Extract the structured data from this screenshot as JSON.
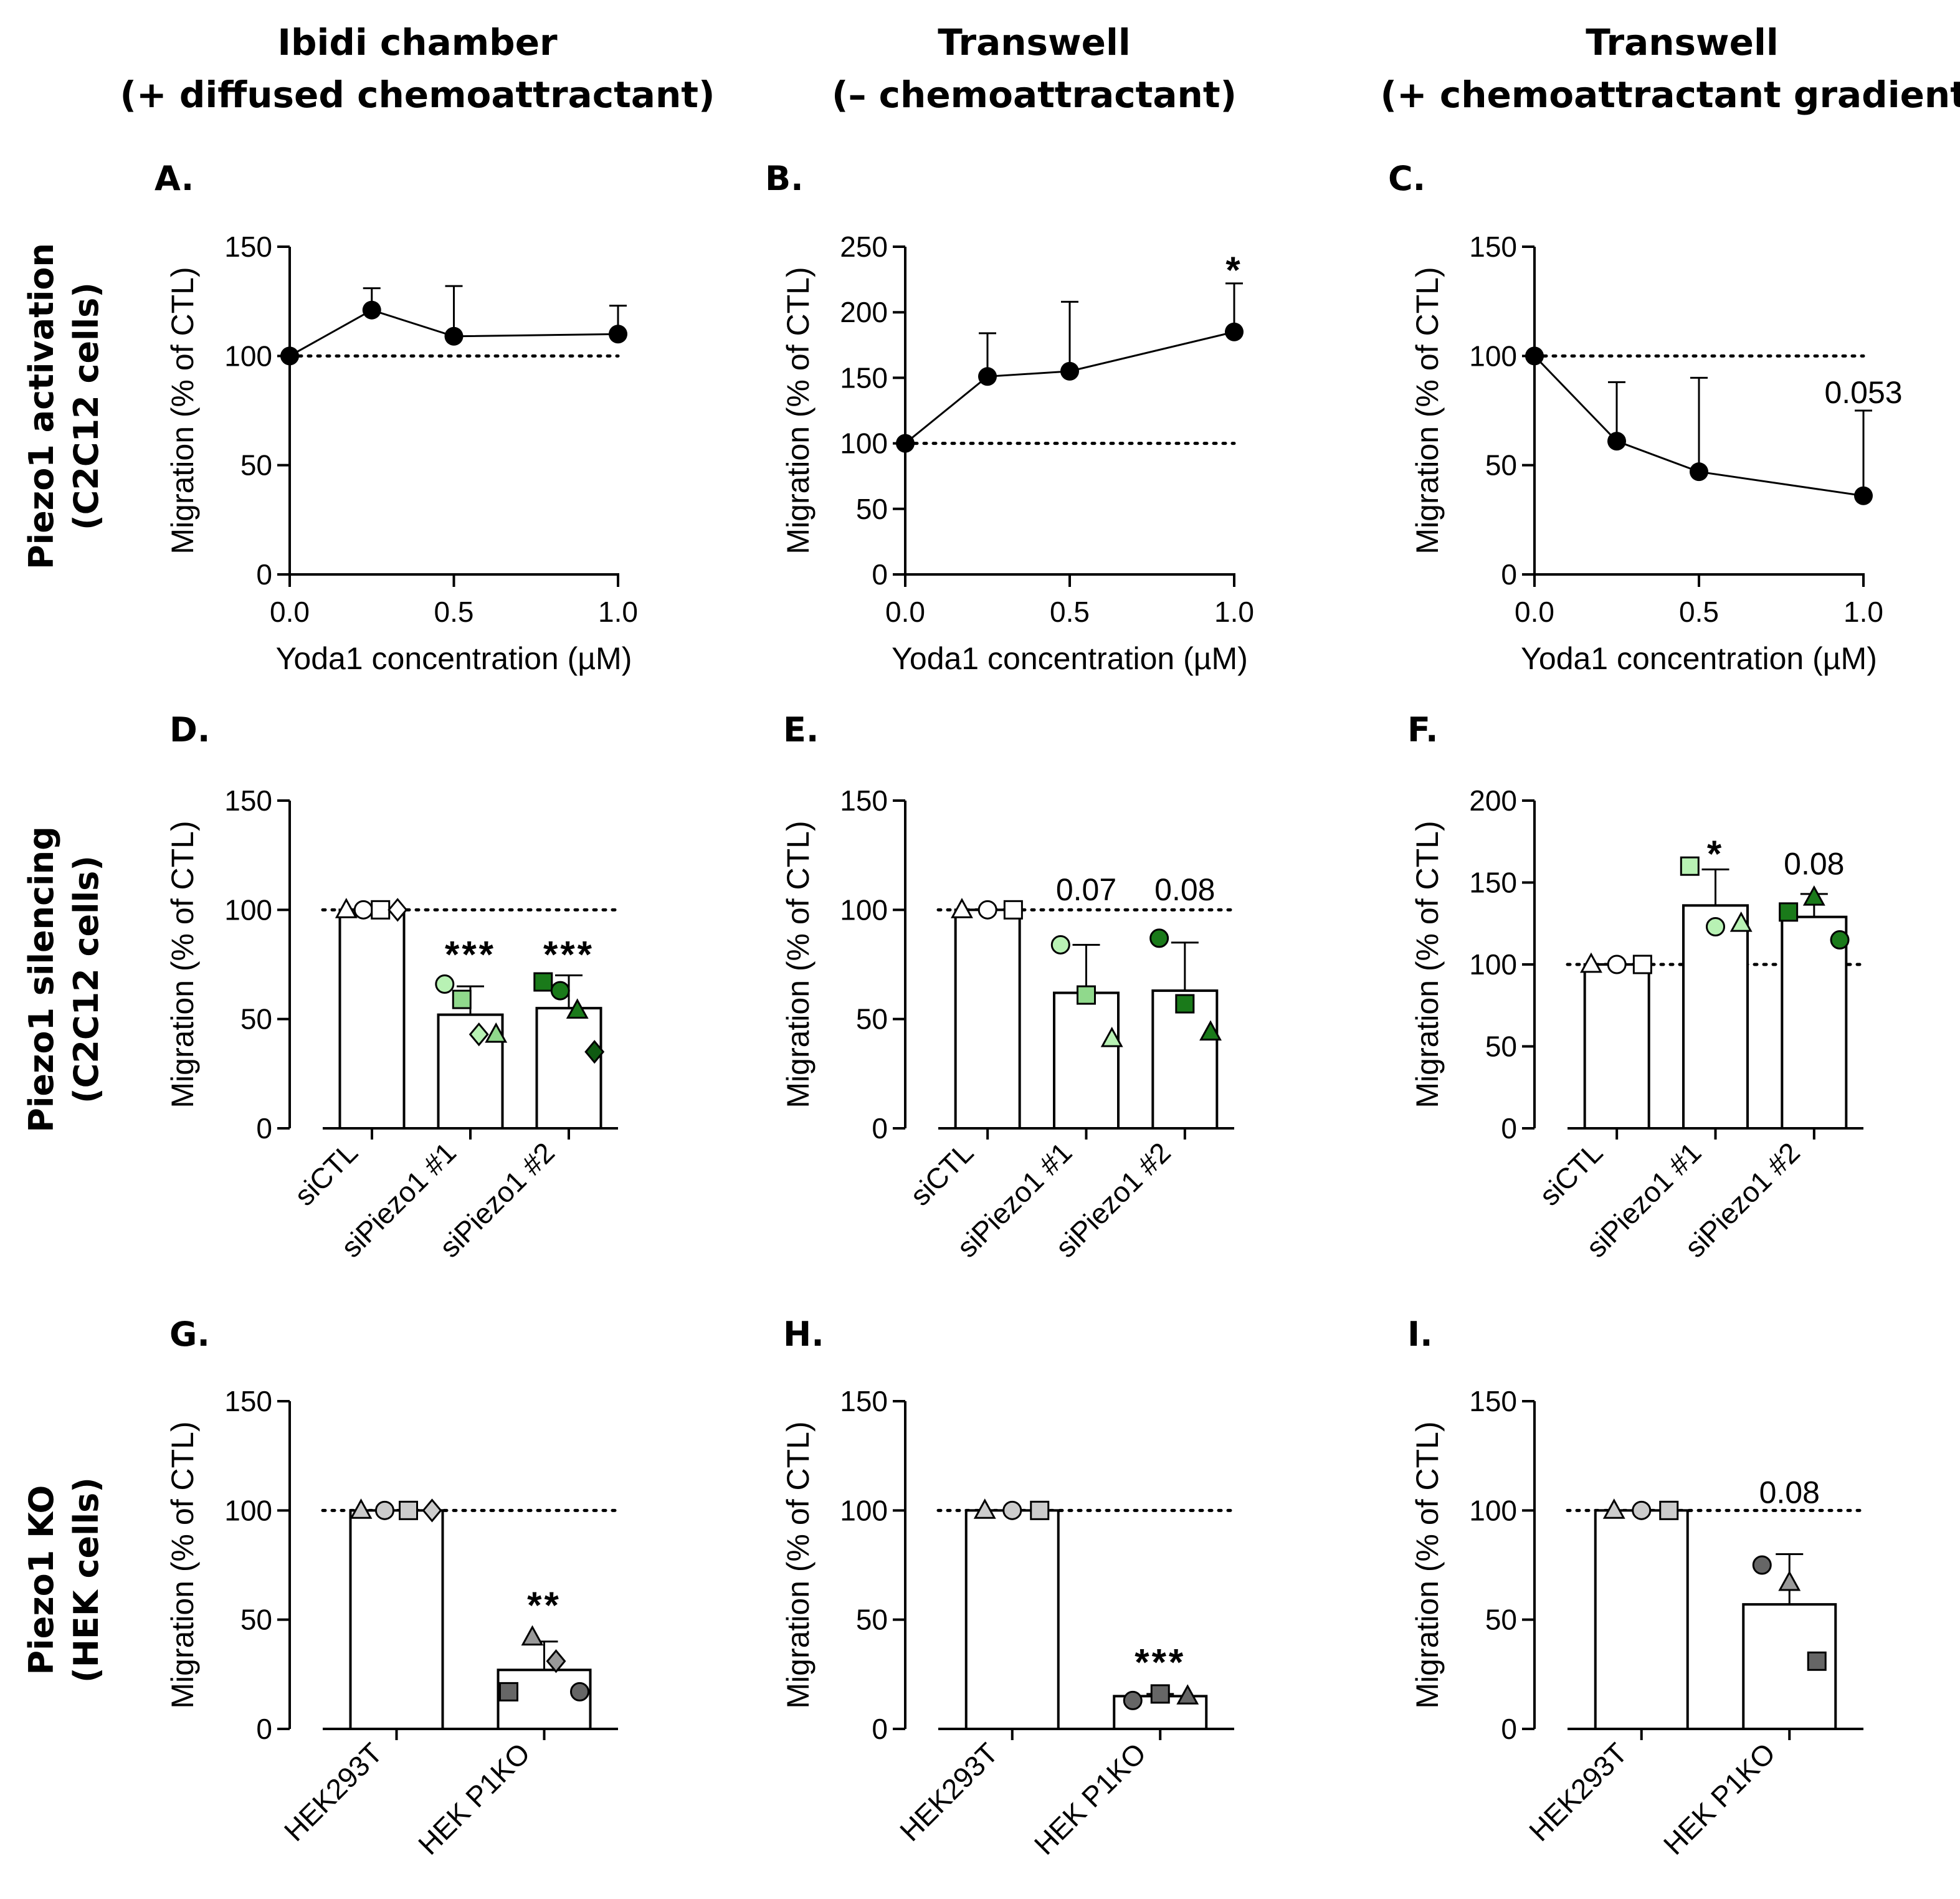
{
  "column_titles": [
    {
      "line1": "Ibidi chamber",
      "line2": "(+ diffused chemoattractant)"
    },
    {
      "line1": "Transwell",
      "line2": "(– chemoattractant)"
    },
    {
      "line1": "Transwell",
      "line2": "(+ chemoattractant gradient)"
    }
  ],
  "row_labels": [
    {
      "line1": "Piezo1 activation",
      "line2": "(C2C12  cells)"
    },
    {
      "line1": "Piezo1 silencing",
      "line2": "(C2C12 cells)"
    },
    {
      "line1": "Piezo1 KO",
      "line2": "(HEK cells)"
    }
  ],
  "colors": {
    "axis": "#000000",
    "c1_light": "#b8f2b4",
    "c2_light": "#90d98c",
    "c3_dark": "#1a7a1a",
    "c4_darker": "#0f5a12",
    "grey_light": "#cccccc",
    "grey_mid": "#999999",
    "grey_dark": "#666666"
  },
  "chart_data": [
    {
      "id": "A",
      "label": "A.",
      "type": "line",
      "xlabel": "Yoda1 concentration (µM)",
      "ylabel": "Migration (% of CTL)",
      "xlim": [
        0,
        1
      ],
      "ylim": [
        0,
        150
      ],
      "xticks": [
        0,
        0.5,
        1
      ],
      "xtick_labels": [
        "0.0",
        "0.5",
        "1.0"
      ],
      "yticks": [
        0,
        50,
        100,
        150
      ],
      "ytick_labels": [
        "0",
        "50",
        "100",
        "150"
      ],
      "reference_line": 100,
      "x": [
        0,
        0.25,
        0.5,
        1.0
      ],
      "y": [
        100,
        121,
        109,
        110
      ],
      "error": [
        0,
        10,
        23,
        13
      ],
      "annotations": []
    },
    {
      "id": "B",
      "label": "B.",
      "type": "line",
      "xlabel": "Yoda1 concentration (µM)",
      "ylabel": "Migration (% of CTL)",
      "xlim": [
        0,
        1
      ],
      "ylim": [
        0,
        250
      ],
      "xticks": [
        0,
        0.5,
        1
      ],
      "xtick_labels": [
        "0.0",
        "0.5",
        "1.0"
      ],
      "yticks": [
        0,
        50,
        100,
        150,
        200,
        250
      ],
      "ytick_labels": [
        "0",
        "50",
        "100",
        "150",
        "200",
        "250"
      ],
      "reference_line": 100,
      "x": [
        0,
        0.25,
        0.5,
        1.0
      ],
      "y": [
        100,
        151,
        155,
        185
      ],
      "error": [
        0,
        33,
        53,
        37
      ],
      "annotations": [
        {
          "text": "*",
          "x": 1.0,
          "y": 233,
          "style": "star"
        }
      ]
    },
    {
      "id": "C",
      "label": "C.",
      "type": "line",
      "xlabel": "Yoda1 concentration (µM)",
      "ylabel": "Migration (% of CTL)",
      "xlim": [
        0,
        1
      ],
      "ylim": [
        0,
        150
      ],
      "xticks": [
        0,
        0.5,
        1
      ],
      "xtick_labels": [
        "0.0",
        "0.5",
        "1.0"
      ],
      "yticks": [
        0,
        50,
        100,
        150
      ],
      "ytick_labels": [
        "0",
        "50",
        "100",
        "150"
      ],
      "reference_line": 100,
      "x": [
        0,
        0.25,
        0.5,
        1.0
      ],
      "y": [
        100,
        61,
        47,
        36
      ],
      "error": [
        0,
        27,
        43,
        39
      ],
      "annotations": [
        {
          "text": "0.053",
          "x": 1.0,
          "y": 83,
          "style": "num"
        }
      ]
    },
    {
      "id": "D",
      "label": "D.",
      "type": "bar",
      "ylabel": "Migration (% of CTL)",
      "categories": [
        "siCTL",
        "siPiezo1 #1",
        "siPiezo1 #2"
      ],
      "ylim": [
        0,
        150
      ],
      "yticks": [
        0,
        50,
        100,
        150
      ],
      "ytick_labels": [
        "0",
        "50",
        "100",
        "150"
      ],
      "reference_line": 100,
      "values": [
        100,
        52,
        55
      ],
      "error": [
        0,
        13,
        15
      ],
      "points": [
        [
          {
            "y": 100,
            "shape": "triangle",
            "color": "#ffffff"
          },
          {
            "y": 100,
            "shape": "circle",
            "color": "#ffffff"
          },
          {
            "y": 100,
            "shape": "square",
            "color": "#ffffff"
          },
          {
            "y": 100,
            "shape": "diamond",
            "color": "#ffffff"
          }
        ],
        [
          {
            "y": 66,
            "shape": "circle",
            "color": "#b8f2b4"
          },
          {
            "y": 59,
            "shape": "square",
            "color": "#90d98c"
          },
          {
            "y": 43,
            "shape": "diamond",
            "color": "#b8f2b4"
          },
          {
            "y": 43,
            "shape": "triangle",
            "color": "#90d98c"
          }
        ],
        [
          {
            "y": 67,
            "shape": "square",
            "color": "#1a7a1a"
          },
          {
            "y": 63,
            "shape": "circle",
            "color": "#1a7a1a"
          },
          {
            "y": 54,
            "shape": "triangle",
            "color": "#1a7a1a"
          },
          {
            "y": 35,
            "shape": "diamond",
            "color": "#0f5a12"
          }
        ]
      ],
      "annotations": [
        {
          "text": "***",
          "cat": 1,
          "y": 80,
          "style": "star"
        },
        {
          "text": "***",
          "cat": 2,
          "y": 80,
          "style": "star"
        }
      ]
    },
    {
      "id": "E",
      "label": "E.",
      "type": "bar",
      "ylabel": "Migration (% of CTL)",
      "categories": [
        "siCTL",
        "siPiezo1 #1",
        "siPiezo1 #2"
      ],
      "ylim": [
        0,
        150
      ],
      "yticks": [
        0,
        50,
        100,
        150
      ],
      "ytick_labels": [
        "0",
        "50",
        "100",
        "150"
      ],
      "reference_line": 100,
      "values": [
        100,
        62,
        63
      ],
      "error": [
        0,
        22,
        22
      ],
      "points": [
        [
          {
            "y": 100,
            "shape": "triangle",
            "color": "#ffffff"
          },
          {
            "y": 100,
            "shape": "circle",
            "color": "#ffffff"
          },
          {
            "y": 100,
            "shape": "square",
            "color": "#ffffff"
          }
        ],
        [
          {
            "y": 84,
            "shape": "circle",
            "color": "#b8f2b4"
          },
          {
            "y": 61,
            "shape": "square",
            "color": "#90d98c"
          },
          {
            "y": 41,
            "shape": "triangle",
            "color": "#b8f2b4"
          }
        ],
        [
          {
            "y": 87,
            "shape": "circle",
            "color": "#1a7a1a"
          },
          {
            "y": 57,
            "shape": "square",
            "color": "#1a7a1a"
          },
          {
            "y": 44,
            "shape": "triangle",
            "color": "#1a7a1a"
          }
        ]
      ],
      "annotations": [
        {
          "text": "0.07",
          "cat": 1,
          "y": 109,
          "style": "num"
        },
        {
          "text": "0.08",
          "cat": 2,
          "y": 109,
          "style": "num"
        }
      ]
    },
    {
      "id": "F",
      "label": "F.",
      "type": "bar",
      "ylabel": "Migration (% of CTL)",
      "categories": [
        "siCTL",
        "siPiezo1 #1",
        "siPiezo1 #2"
      ],
      "ylim": [
        0,
        200
      ],
      "yticks": [
        0,
        50,
        100,
        150,
        200
      ],
      "ytick_labels": [
        "0",
        "50",
        "100",
        "150",
        "200"
      ],
      "reference_line": 100,
      "values": [
        100,
        136,
        129
      ],
      "error": [
        0,
        22,
        14
      ],
      "points": [
        [
          {
            "y": 100,
            "shape": "triangle",
            "color": "#ffffff"
          },
          {
            "y": 100,
            "shape": "circle",
            "color": "#ffffff"
          },
          {
            "y": 100,
            "shape": "square",
            "color": "#ffffff"
          }
        ],
        [
          {
            "y": 160,
            "shape": "square",
            "color": "#b8f2b4"
          },
          {
            "y": 123,
            "shape": "circle",
            "color": "#b8f2b4"
          },
          {
            "y": 125,
            "shape": "triangle",
            "color": "#b8f2b4"
          }
        ],
        [
          {
            "y": 132,
            "shape": "square",
            "color": "#1a7a1a"
          },
          {
            "y": 141,
            "shape": "triangle",
            "color": "#1a7a1a"
          },
          {
            "y": 115,
            "shape": "circle",
            "color": "#1a7a1a"
          }
        ]
      ],
      "annotations": [
        {
          "text": "*",
          "cat": 1,
          "y": 168,
          "style": "star"
        },
        {
          "text": "0.08",
          "cat": 2,
          "y": 161,
          "style": "num"
        }
      ]
    },
    {
      "id": "G",
      "label": "G.",
      "type": "bar",
      "ylabel": "Migration (% of CTL)",
      "categories": [
        "HEK293T",
        "HEK P1KO"
      ],
      "ylim": [
        0,
        150
      ],
      "yticks": [
        0,
        50,
        100,
        150
      ],
      "ytick_labels": [
        "0",
        "50",
        "100",
        "150"
      ],
      "reference_line": 100,
      "values": [
        100,
        27
      ],
      "error": [
        0,
        13
      ],
      "points": [
        [
          {
            "y": 100,
            "shape": "triangle",
            "color": "#cccccc"
          },
          {
            "y": 100,
            "shape": "circle",
            "color": "#cccccc"
          },
          {
            "y": 100,
            "shape": "square",
            "color": "#cccccc"
          },
          {
            "y": 100,
            "shape": "diamond",
            "color": "#cccccc"
          }
        ],
        [
          {
            "y": 17,
            "shape": "square",
            "color": "#666666"
          },
          {
            "y": 42,
            "shape": "triangle",
            "color": "#999999"
          },
          {
            "y": 31,
            "shape": "diamond",
            "color": "#999999"
          },
          {
            "y": 17,
            "shape": "circle",
            "color": "#666666"
          }
        ]
      ],
      "annotations": [
        {
          "text": "**",
          "cat": 1,
          "y": 57,
          "style": "star"
        }
      ]
    },
    {
      "id": "H",
      "label": "H.",
      "type": "bar",
      "ylabel": "Migration (% of CTL)",
      "categories": [
        "HEK293T",
        "HEK P1KO"
      ],
      "ylim": [
        0,
        150
      ],
      "yticks": [
        0,
        50,
        100,
        150
      ],
      "ytick_labels": [
        "0",
        "50",
        "100",
        "150"
      ],
      "reference_line": 100,
      "values": [
        100,
        15
      ],
      "error": [
        0,
        1
      ],
      "points": [
        [
          {
            "y": 100,
            "shape": "triangle",
            "color": "#cccccc"
          },
          {
            "y": 100,
            "shape": "circle",
            "color": "#cccccc"
          },
          {
            "y": 100,
            "shape": "square",
            "color": "#cccccc"
          }
        ],
        [
          {
            "y": 13,
            "shape": "circle",
            "color": "#666666"
          },
          {
            "y": 16,
            "shape": "square",
            "color": "#666666"
          },
          {
            "y": 15,
            "shape": "triangle",
            "color": "#666666"
          }
        ]
      ],
      "annotations": [
        {
          "text": "***",
          "cat": 1,
          "y": 31,
          "style": "star"
        }
      ]
    },
    {
      "id": "I",
      "label": "I.",
      "type": "bar",
      "ylabel": "Migration (% of CTL)",
      "categories": [
        "HEK293T",
        "HEK P1KO"
      ],
      "ylim": [
        0,
        150
      ],
      "yticks": [
        0,
        50,
        100,
        150
      ],
      "ytick_labels": [
        "0",
        "50",
        "100",
        "150"
      ],
      "reference_line": 100,
      "values": [
        100,
        57
      ],
      "error": [
        0,
        23
      ],
      "points": [
        [
          {
            "y": 100,
            "shape": "triangle",
            "color": "#cccccc"
          },
          {
            "y": 100,
            "shape": "circle",
            "color": "#cccccc"
          },
          {
            "y": 100,
            "shape": "square",
            "color": "#cccccc"
          }
        ],
        [
          {
            "y": 75,
            "shape": "circle",
            "color": "#666666"
          },
          {
            "y": 67,
            "shape": "triangle",
            "color": "#999999"
          },
          {
            "y": 31,
            "shape": "square",
            "color": "#666666"
          }
        ]
      ],
      "annotations": [
        {
          "text": "0.08",
          "cat": 1,
          "y": 108,
          "style": "num"
        }
      ]
    }
  ]
}
